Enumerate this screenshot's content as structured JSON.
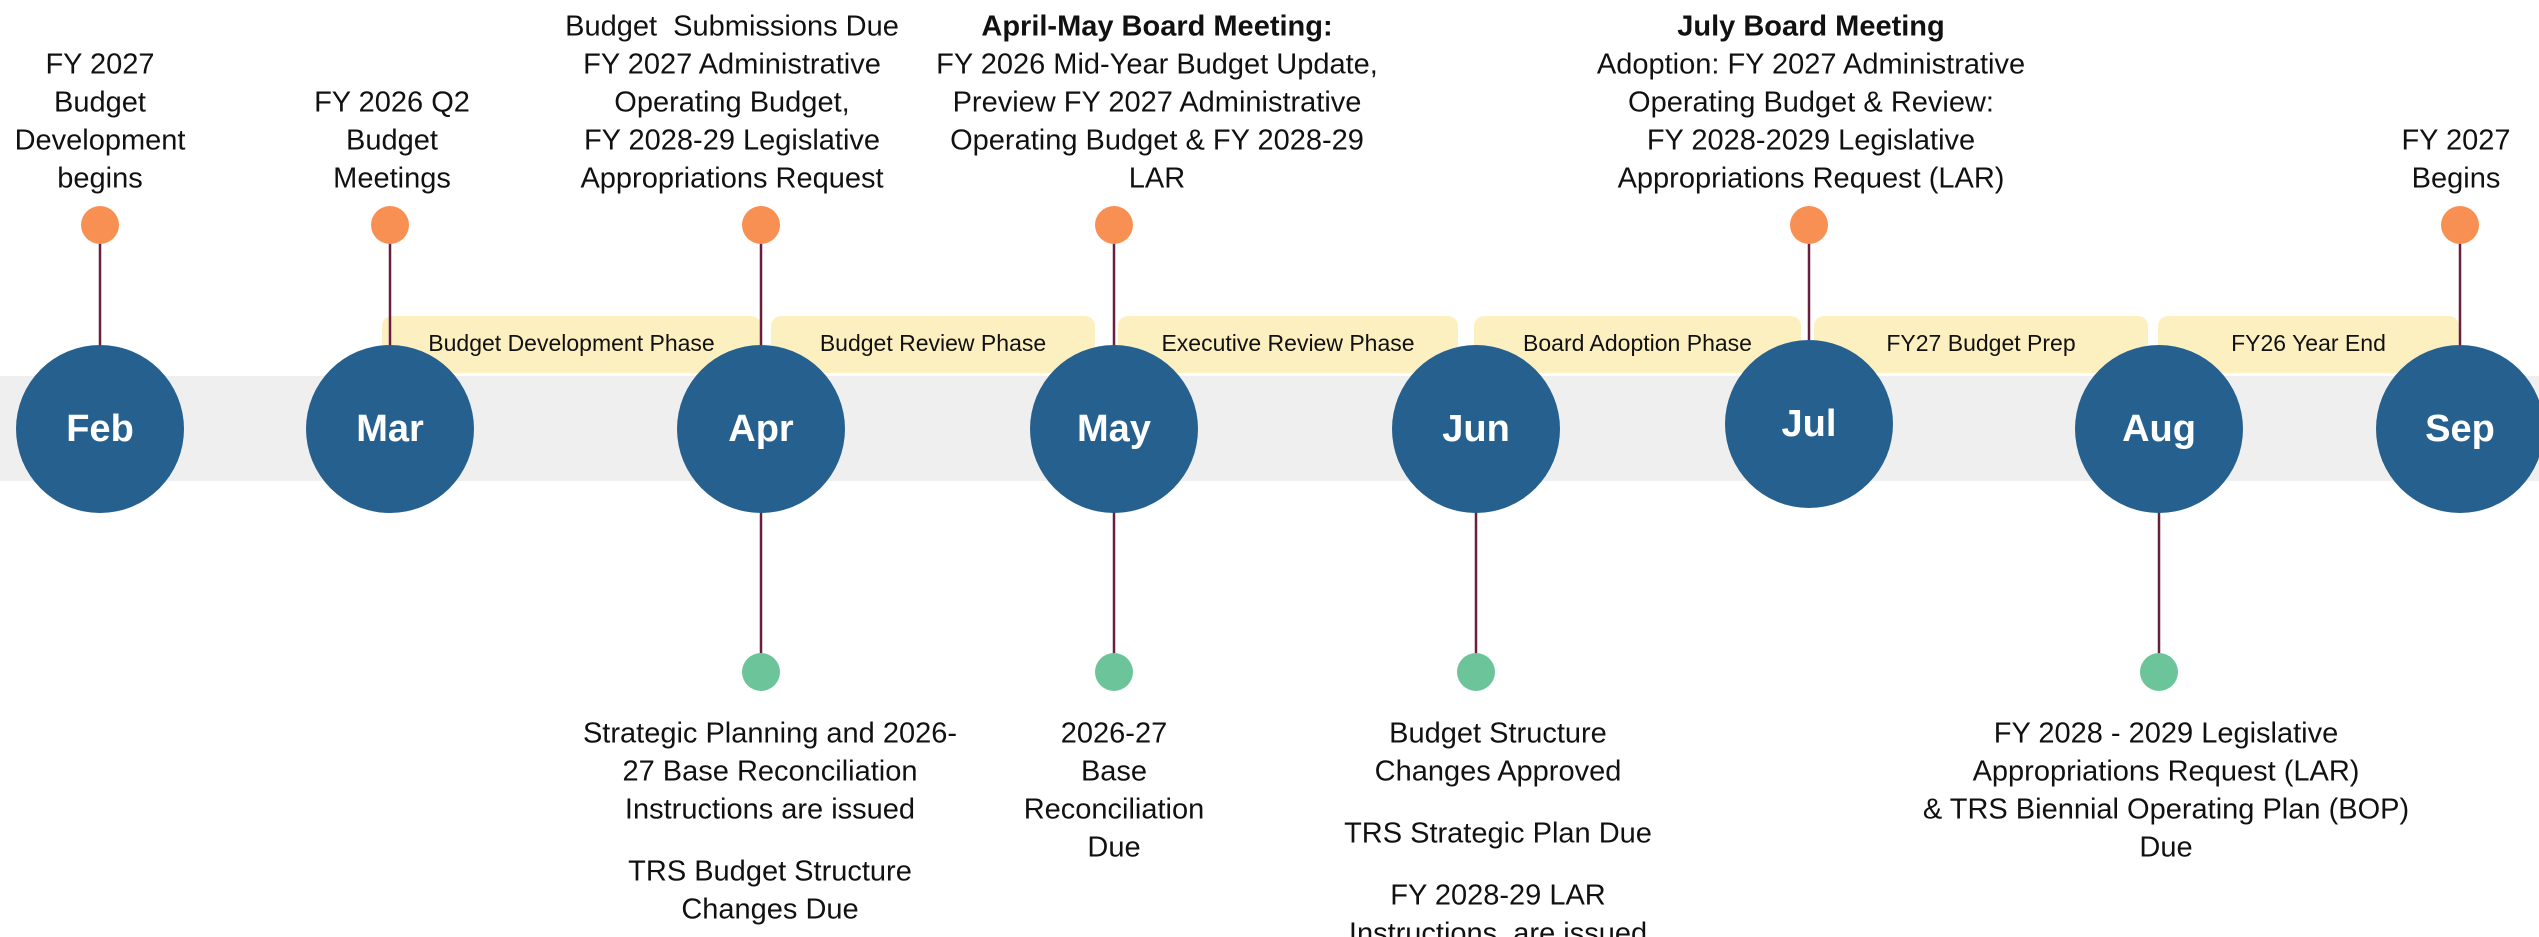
{
  "phases": [
    "Budget Development Phase",
    "Budget Review Phase",
    "Executive Review Phase",
    "Board Adoption Phase",
    "FY27 Budget Prep",
    "FY26 Year End"
  ],
  "months": [
    {
      "label": "Feb",
      "top": [
        "FY 2027",
        "Budget",
        "Development",
        "begins"
      ],
      "bottom": []
    },
    {
      "label": "Mar",
      "top": [
        "FY 2026 Q2",
        "Budget",
        "Meetings"
      ],
      "bottom": []
    },
    {
      "label": "Apr",
      "top": [
        "Budget  Submissions Due",
        "FY 2027 Administrative",
        "Operating Budget,",
        "FY 2028-29 Legislative",
        "Appropriations Request"
      ],
      "bottom": [
        [
          "Strategic Planning and 2026-",
          "27 Base Reconciliation",
          "Instructions are issued"
        ],
        [
          "TRS Budget Structure",
          "Changes Due"
        ]
      ]
    },
    {
      "label": "May",
      "top_title": "April-May Board Meeting:",
      "top": [
        "FY 2026 Mid-Year Budget Update,",
        "Preview FY 2027 Administrative",
        "Operating Budget & FY 2028-29",
        "LAR"
      ],
      "bottom": [
        [
          "2026-27",
          "Base",
          "Reconciliation",
          "Due"
        ]
      ]
    },
    {
      "label": "Jun",
      "top": [],
      "bottom": [
        [
          "Budget Structure",
          "Changes Approved"
        ],
        [
          "TRS Strategic Plan Due"
        ],
        [
          "FY 2028-29 LAR",
          "Instructions  are issued"
        ]
      ]
    },
    {
      "label": "Jul",
      "top_title": "July Board Meeting",
      "top": [
        "Adoption: FY 2027 Administrative",
        "Operating Budget & Review:",
        "FY 2028-2029 Legislative",
        "Appropriations Request (LAR)"
      ],
      "bottom": []
    },
    {
      "label": "Aug",
      "top": [],
      "bottom": [
        [
          "FY 2028 - 2029 Legislative",
          "Appropriations Request (LAR)",
          "& TRS Biennial Operating Plan (BOP)",
          "Due"
        ]
      ]
    },
    {
      "label": "Sep",
      "top": [
        "FY 2027",
        "Begins"
      ],
      "bottom": []
    }
  ]
}
